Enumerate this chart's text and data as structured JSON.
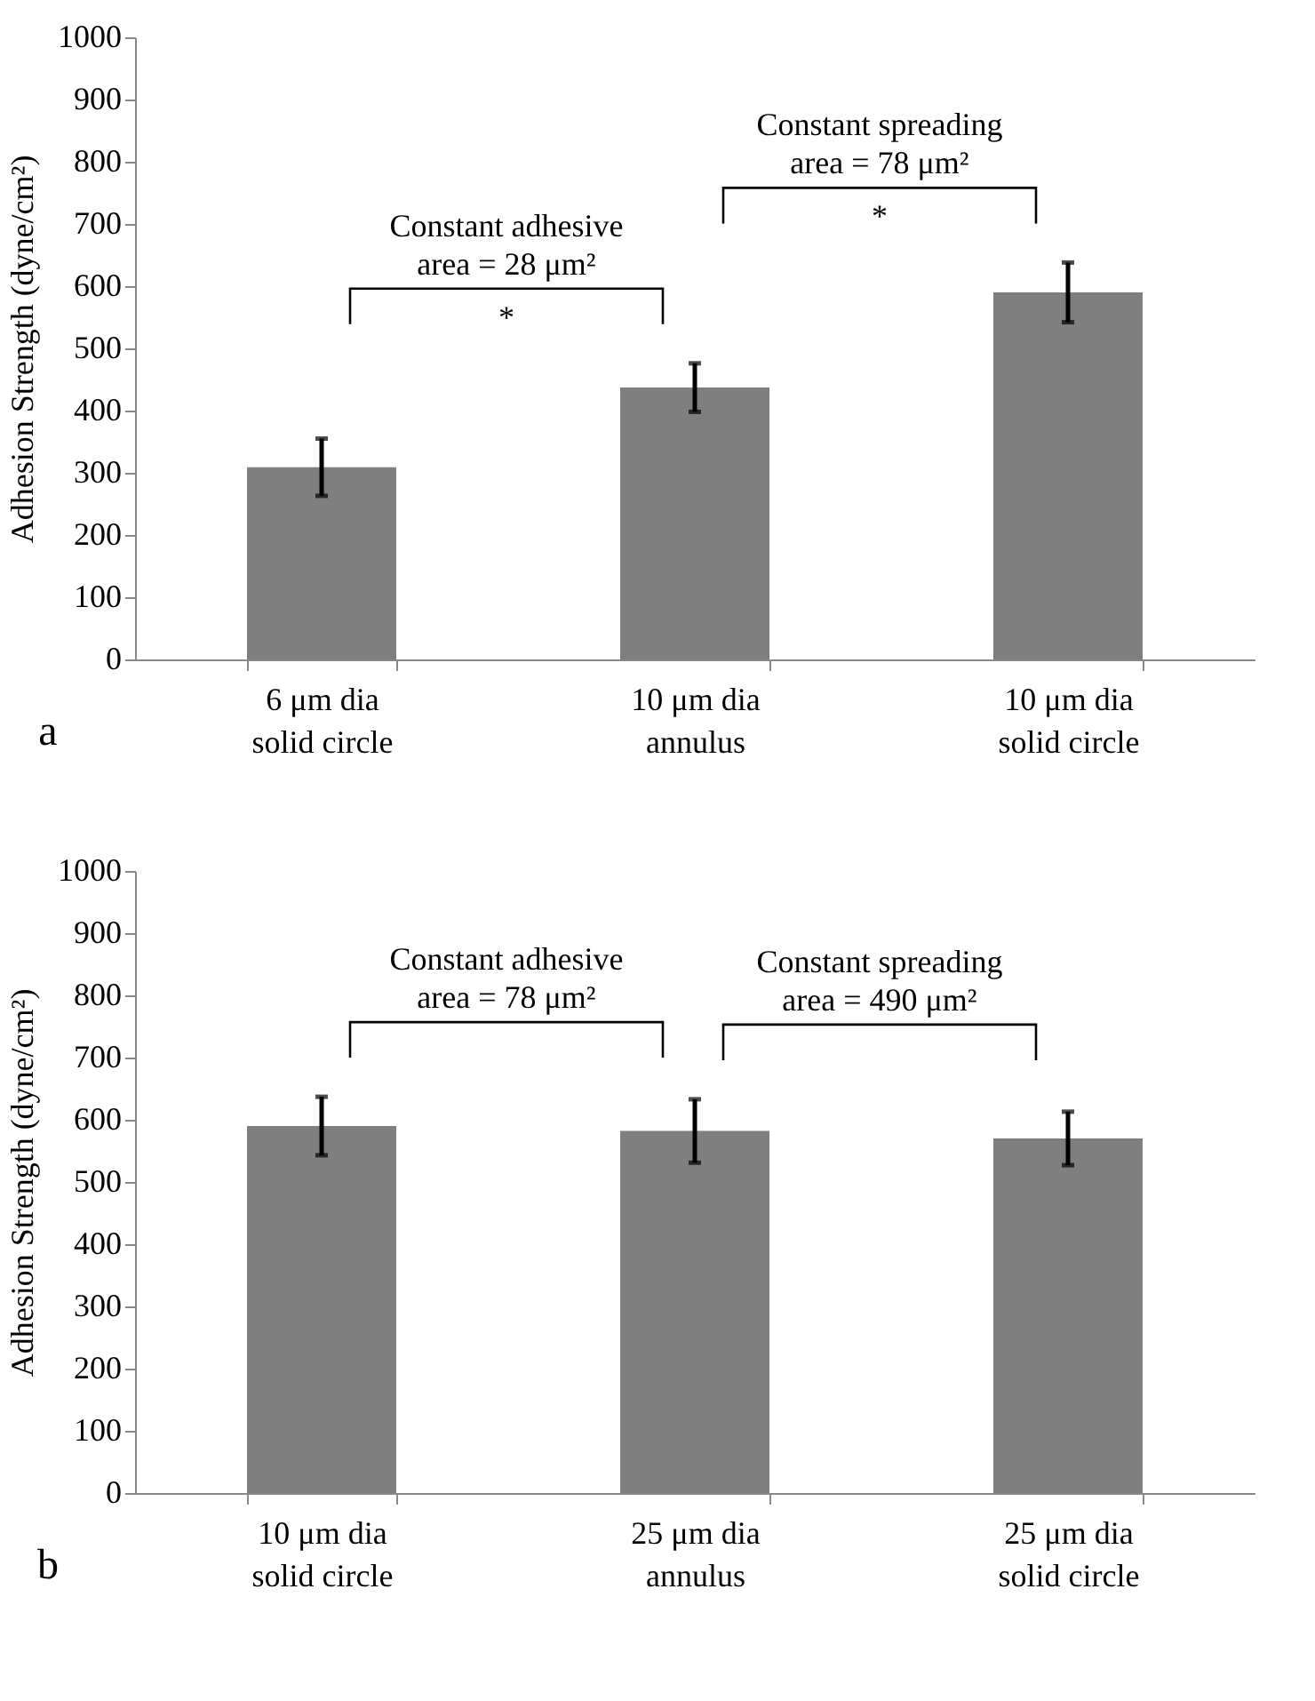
{
  "chart_data": [
    {
      "type": "bar",
      "categories": [
        "6 μm dia\nsolid circle",
        "10 μm dia\nannulus",
        "10 μm dia\nsolid circle"
      ],
      "ylabel": "Adhesion Strength (dyne/cm²)",
      "values": [
        309,
        437,
        590
      ],
      "errors": [
        46,
        39,
        48
      ],
      "color": "#7f7f7f",
      "ylim": [
        0,
        1000
      ],
      "yticks": [
        0,
        100,
        200,
        300,
        400,
        500,
        600,
        700,
        800,
        900,
        1000
      ],
      "grid": false,
      "annotations": [
        "Constant adhesive\narea = 28 μm²",
        "*",
        "Constant spreading\narea = 78 μm²",
        "*",
        "a"
      ]
    },
    {
      "type": "bar",
      "categories": [
        "10 μm dia\nsolid circle",
        "25 μm dia\nannulus",
        "25 μm dia\nsolid circle"
      ],
      "ylabel": "Adhesion Strength (dyne/cm²)",
      "values": [
        590,
        582,
        570
      ],
      "errors": [
        47,
        51,
        43
      ],
      "color": "#7f7f7f",
      "ylim": [
        0,
        1000
      ],
      "yticks": [
        0,
        100,
        200,
        300,
        400,
        500,
        600,
        700,
        800,
        900,
        1000
      ],
      "grid": false,
      "annotations": [
        "Constant adhesive\narea = 78 μm²",
        "Constant spreading\narea = 490 μm²",
        "b"
      ]
    }
  ]
}
